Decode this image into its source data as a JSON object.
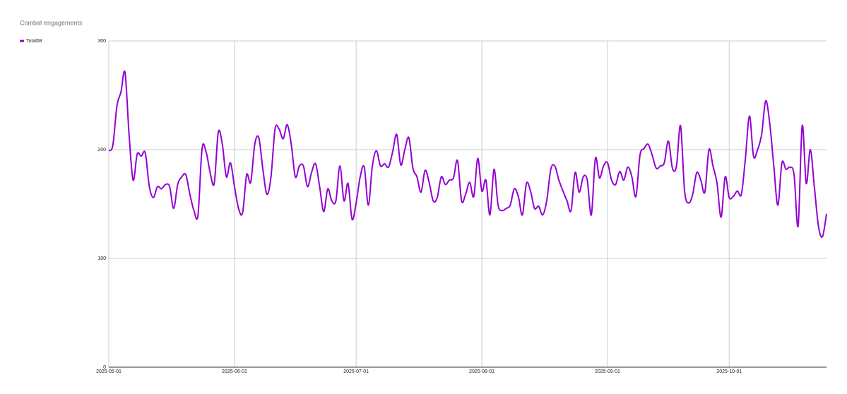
{
  "chart_data": {
    "type": "line",
    "title": "Combat engagements",
    "x": [
      "2025-05-01",
      "2025-05-02",
      "2025-05-03",
      "2025-05-04",
      "2025-05-05",
      "2025-05-06",
      "2025-05-07",
      "2025-05-08",
      "2025-05-09",
      "2025-05-10",
      "2025-05-11",
      "2025-05-12",
      "2025-05-13",
      "2025-05-14",
      "2025-05-15",
      "2025-05-16",
      "2025-05-17",
      "2025-05-18",
      "2025-05-19",
      "2025-05-20",
      "2025-05-21",
      "2025-05-22",
      "2025-05-23",
      "2025-05-24",
      "2025-05-25",
      "2025-05-26",
      "2025-05-27",
      "2025-05-28",
      "2025-05-29",
      "2025-05-30",
      "2025-05-31",
      "2025-06-01",
      "2025-06-02",
      "2025-06-03",
      "2025-06-04",
      "2025-06-05",
      "2025-06-06",
      "2025-06-07",
      "2025-06-08",
      "2025-06-09",
      "2025-06-10",
      "2025-06-11",
      "2025-06-12",
      "2025-06-13",
      "2025-06-14",
      "2025-06-15",
      "2025-06-16",
      "2025-06-17",
      "2025-06-18",
      "2025-06-19",
      "2025-06-20",
      "2025-06-21",
      "2025-06-22",
      "2025-06-23",
      "2025-06-24",
      "2025-06-25",
      "2025-06-26",
      "2025-06-27",
      "2025-06-28",
      "2025-06-29",
      "2025-06-30",
      "2025-07-01",
      "2025-07-02",
      "2025-07-03",
      "2025-07-04",
      "2025-07-05",
      "2025-07-06",
      "2025-07-07",
      "2025-07-08",
      "2025-07-09",
      "2025-07-10",
      "2025-07-11",
      "2025-07-12",
      "2025-07-13",
      "2025-07-14",
      "2025-07-15",
      "2025-07-16",
      "2025-07-17",
      "2025-07-18",
      "2025-07-19",
      "2025-07-20",
      "2025-07-21",
      "2025-07-22",
      "2025-07-23",
      "2025-07-24",
      "2025-07-25",
      "2025-07-26",
      "2025-07-27",
      "2025-07-28",
      "2025-07-29",
      "2025-07-30",
      "2025-07-31",
      "2025-08-01",
      "2025-08-02",
      "2025-08-03",
      "2025-08-04",
      "2025-08-05",
      "2025-08-06",
      "2025-08-07",
      "2025-08-08",
      "2025-08-09",
      "2025-08-10",
      "2025-08-11",
      "2025-08-12",
      "2025-08-13",
      "2025-08-14",
      "2025-08-15",
      "2025-08-16",
      "2025-08-17",
      "2025-08-18",
      "2025-08-19",
      "2025-08-20",
      "2025-08-21",
      "2025-08-22",
      "2025-08-23",
      "2025-08-24",
      "2025-08-25",
      "2025-08-26",
      "2025-08-27",
      "2025-08-28",
      "2025-08-29",
      "2025-08-30",
      "2025-08-31",
      "2025-09-01",
      "2025-09-02",
      "2025-09-03",
      "2025-09-04",
      "2025-09-05",
      "2025-09-06",
      "2025-09-07",
      "2025-09-08",
      "2025-09-09",
      "2025-09-10",
      "2025-09-11",
      "2025-09-12",
      "2025-09-13",
      "2025-09-14",
      "2025-09-15",
      "2025-09-16",
      "2025-09-17",
      "2025-09-18",
      "2025-09-19",
      "2025-09-20",
      "2025-09-21",
      "2025-09-22",
      "2025-09-23",
      "2025-09-24",
      "2025-09-25",
      "2025-09-26",
      "2025-09-27",
      "2025-09-28",
      "2025-09-29",
      "2025-09-30",
      "2025-10-01",
      "2025-10-02",
      "2025-10-03",
      "2025-10-04",
      "2025-10-05",
      "2025-10-06",
      "2025-10-07",
      "2025-10-08",
      "2025-10-09",
      "2025-10-10",
      "2025-10-11",
      "2025-10-12",
      "2025-10-13",
      "2025-10-14",
      "2025-10-15",
      "2025-10-16",
      "2025-10-17",
      "2025-10-18",
      "2025-10-19",
      "2025-10-20",
      "2025-10-21",
      "2025-10-22",
      "2025-10-23",
      "2025-10-24",
      "2025-10-25"
    ],
    "series": [
      {
        "name": "Total08",
        "color": "#9400d3",
        "values": [
          199,
          204,
          240,
          253,
          271,
          214,
          172,
          196,
          194,
          197,
          166,
          156,
          166,
          164,
          168,
          166,
          146,
          168,
          175,
          177,
          159,
          144,
          140,
          201,
          198,
          179,
          169,
          216,
          205,
          175,
          188,
          166,
          146,
          142,
          177,
          170,
          205,
          211,
          182,
          159,
          175,
          219,
          219,
          210,
          223,
          205,
          175,
          185,
          185,
          166,
          179,
          187,
          166,
          143,
          164,
          153,
          153,
          185,
          153,
          169,
          136,
          151,
          175,
          184,
          149,
          185,
          199,
          185,
          187,
          184,
          198,
          214,
          186,
          200,
          211,
          183,
          175,
          161,
          181,
          170,
          153,
          156,
          175,
          168,
          172,
          174,
          190,
          153,
          159,
          170,
          157,
          192,
          162,
          172,
          140,
          182,
          149,
          144,
          146,
          149,
          164,
          157,
          140,
          169,
          162,
          146,
          148,
          140,
          153,
          182,
          185,
          172,
          162,
          153,
          144,
          179,
          161,
          175,
          172,
          140,
          192,
          174,
          185,
          188,
          172,
          168,
          180,
          172,
          184,
          175,
          157,
          195,
          201,
          205,
          195,
          183,
          185,
          188,
          208,
          183,
          185,
          222,
          162,
          151,
          159,
          179,
          172,
          161,
          200,
          185,
          169,
          138,
          175,
          156,
          157,
          162,
          159,
          192,
          231,
          194,
          200,
          214,
          245,
          224,
          185,
          149,
          188,
          182,
          184,
          177,
          130,
          222,
          169,
          200,
          166,
          130,
          120,
          141
        ]
      }
    ],
    "xlim": [
      "2025-05-01",
      "2025-10-25"
    ],
    "xticks": [
      "2025-05-01",
      "2025-06-01",
      "2025-07-01",
      "2025-08-01",
      "2025-09-01",
      "2025-10-01"
    ],
    "ylim": [
      0,
      300
    ],
    "yticks": [
      0,
      100,
      200,
      300
    ],
    "grid": true,
    "legend": "top-left"
  }
}
